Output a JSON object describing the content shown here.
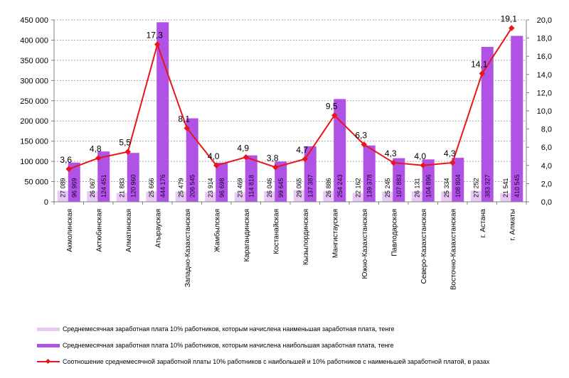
{
  "chart_data": {
    "type": "bar",
    "title": "",
    "xlabel": "",
    "ylabel": "",
    "y2label": "",
    "ylim": [
      0,
      450000
    ],
    "y2lim": [
      0,
      20
    ],
    "yticks": [
      "0",
      "50 000",
      "100 000",
      "150 000",
      "200 000",
      "250 000",
      "300 000",
      "350 000",
      "400 000",
      "450 000"
    ],
    "y2ticks": [
      "0,0",
      "2,0",
      "4,0",
      "6,0",
      "8,0",
      "10,0",
      "12,0",
      "14,0",
      "16,0",
      "18,0",
      "20,0"
    ],
    "grid": true,
    "legend_position": "bottom",
    "categories": [
      "Акмолинская",
      "Актюбинская",
      "Алматинская",
      "Атырауская",
      "Западно-Казахстанская",
      "Жамбылская",
      "Карагандинская",
      "Костанайская",
      "Кызылординская",
      "Мангистауская",
      "Южно-Казахстанская",
      "Павлодарская",
      "Северо-Казахстанская",
      "Восточно-Казахстанская",
      "г. Астана",
      "г. Алматы"
    ],
    "series": [
      {
        "name": "Среднемесячная заработная плата 10% работников, которым начислена наименьшая заработная плата, тенге",
        "type": "bar",
        "axis": "left",
        "color": "#e8c8f4",
        "values": [
          27089,
          26067,
          21883,
          25666,
          25479,
          23914,
          23469,
          26046,
          29065,
          26886,
          22162,
          25245,
          26131,
          25334,
          27252,
          21541
        ],
        "labels": [
          "27 089",
          "26 067",
          "21 883",
          "25 666",
          "25 479",
          "23 914",
          "23 469",
          "26 046",
          "29 065",
          "26 886",
          "22 162",
          "25 245",
          "26 131",
          "25 334",
          "27 252",
          "21 541"
        ]
      },
      {
        "name": "Среднемесячная заработная плата 10% работников, которым начислена наибольшая заработная плата, тенге",
        "type": "bar",
        "axis": "left",
        "color": "#b152e6",
        "values": [
          96969,
          124451,
          120960,
          444176,
          206545,
          96698,
          114818,
          99645,
          137387,
          254243,
          139378,
          107883,
          104896,
          108804,
          383327,
          410545
        ],
        "labels": [
          "96 969",
          "124 451",
          "120 960",
          "444 176",
          "206 545",
          "96 698",
          "114 818",
          "99 645",
          "137 387",
          "254 243",
          "139 378",
          "107 883",
          "104 896",
          "108 804",
          "383 327",
          "410 545"
        ]
      },
      {
        "name": "Соотношение среднемесячной заработной платы 10% работников с наибольшей и 10% работников с наименьшей заработной платой, в разах",
        "type": "line",
        "axis": "right",
        "color": "#e8151b",
        "values": [
          3.6,
          4.8,
          5.5,
          17.3,
          8.1,
          4.0,
          4.9,
          3.8,
          4.7,
          9.5,
          6.3,
          4.3,
          4.0,
          4.3,
          14.1,
          19.1
        ],
        "labels": [
          "3,6",
          "4,8",
          "5,5",
          "17,3",
          "8,1",
          "4,0",
          "4,9",
          "3,8",
          "4,7",
          "9,5",
          "6,3",
          "4,3",
          "4,0",
          "4,3",
          "14,1",
          "19,1"
        ]
      }
    ]
  },
  "legend": {
    "items": [
      {
        "label": "Среднемесячная заработная плата 10% работников, которым начислена наименьшая заработная плата, тенге"
      },
      {
        "label": "Среднемесячная заработная плата 10% работников, которым начислена наибольшая заработная плата, тенге"
      },
      {
        "label": "Соотношение среднемесячной заработной платы 10% работников с наибольшей и 10% работников с наименьшей заработной платой, в разах"
      }
    ]
  }
}
